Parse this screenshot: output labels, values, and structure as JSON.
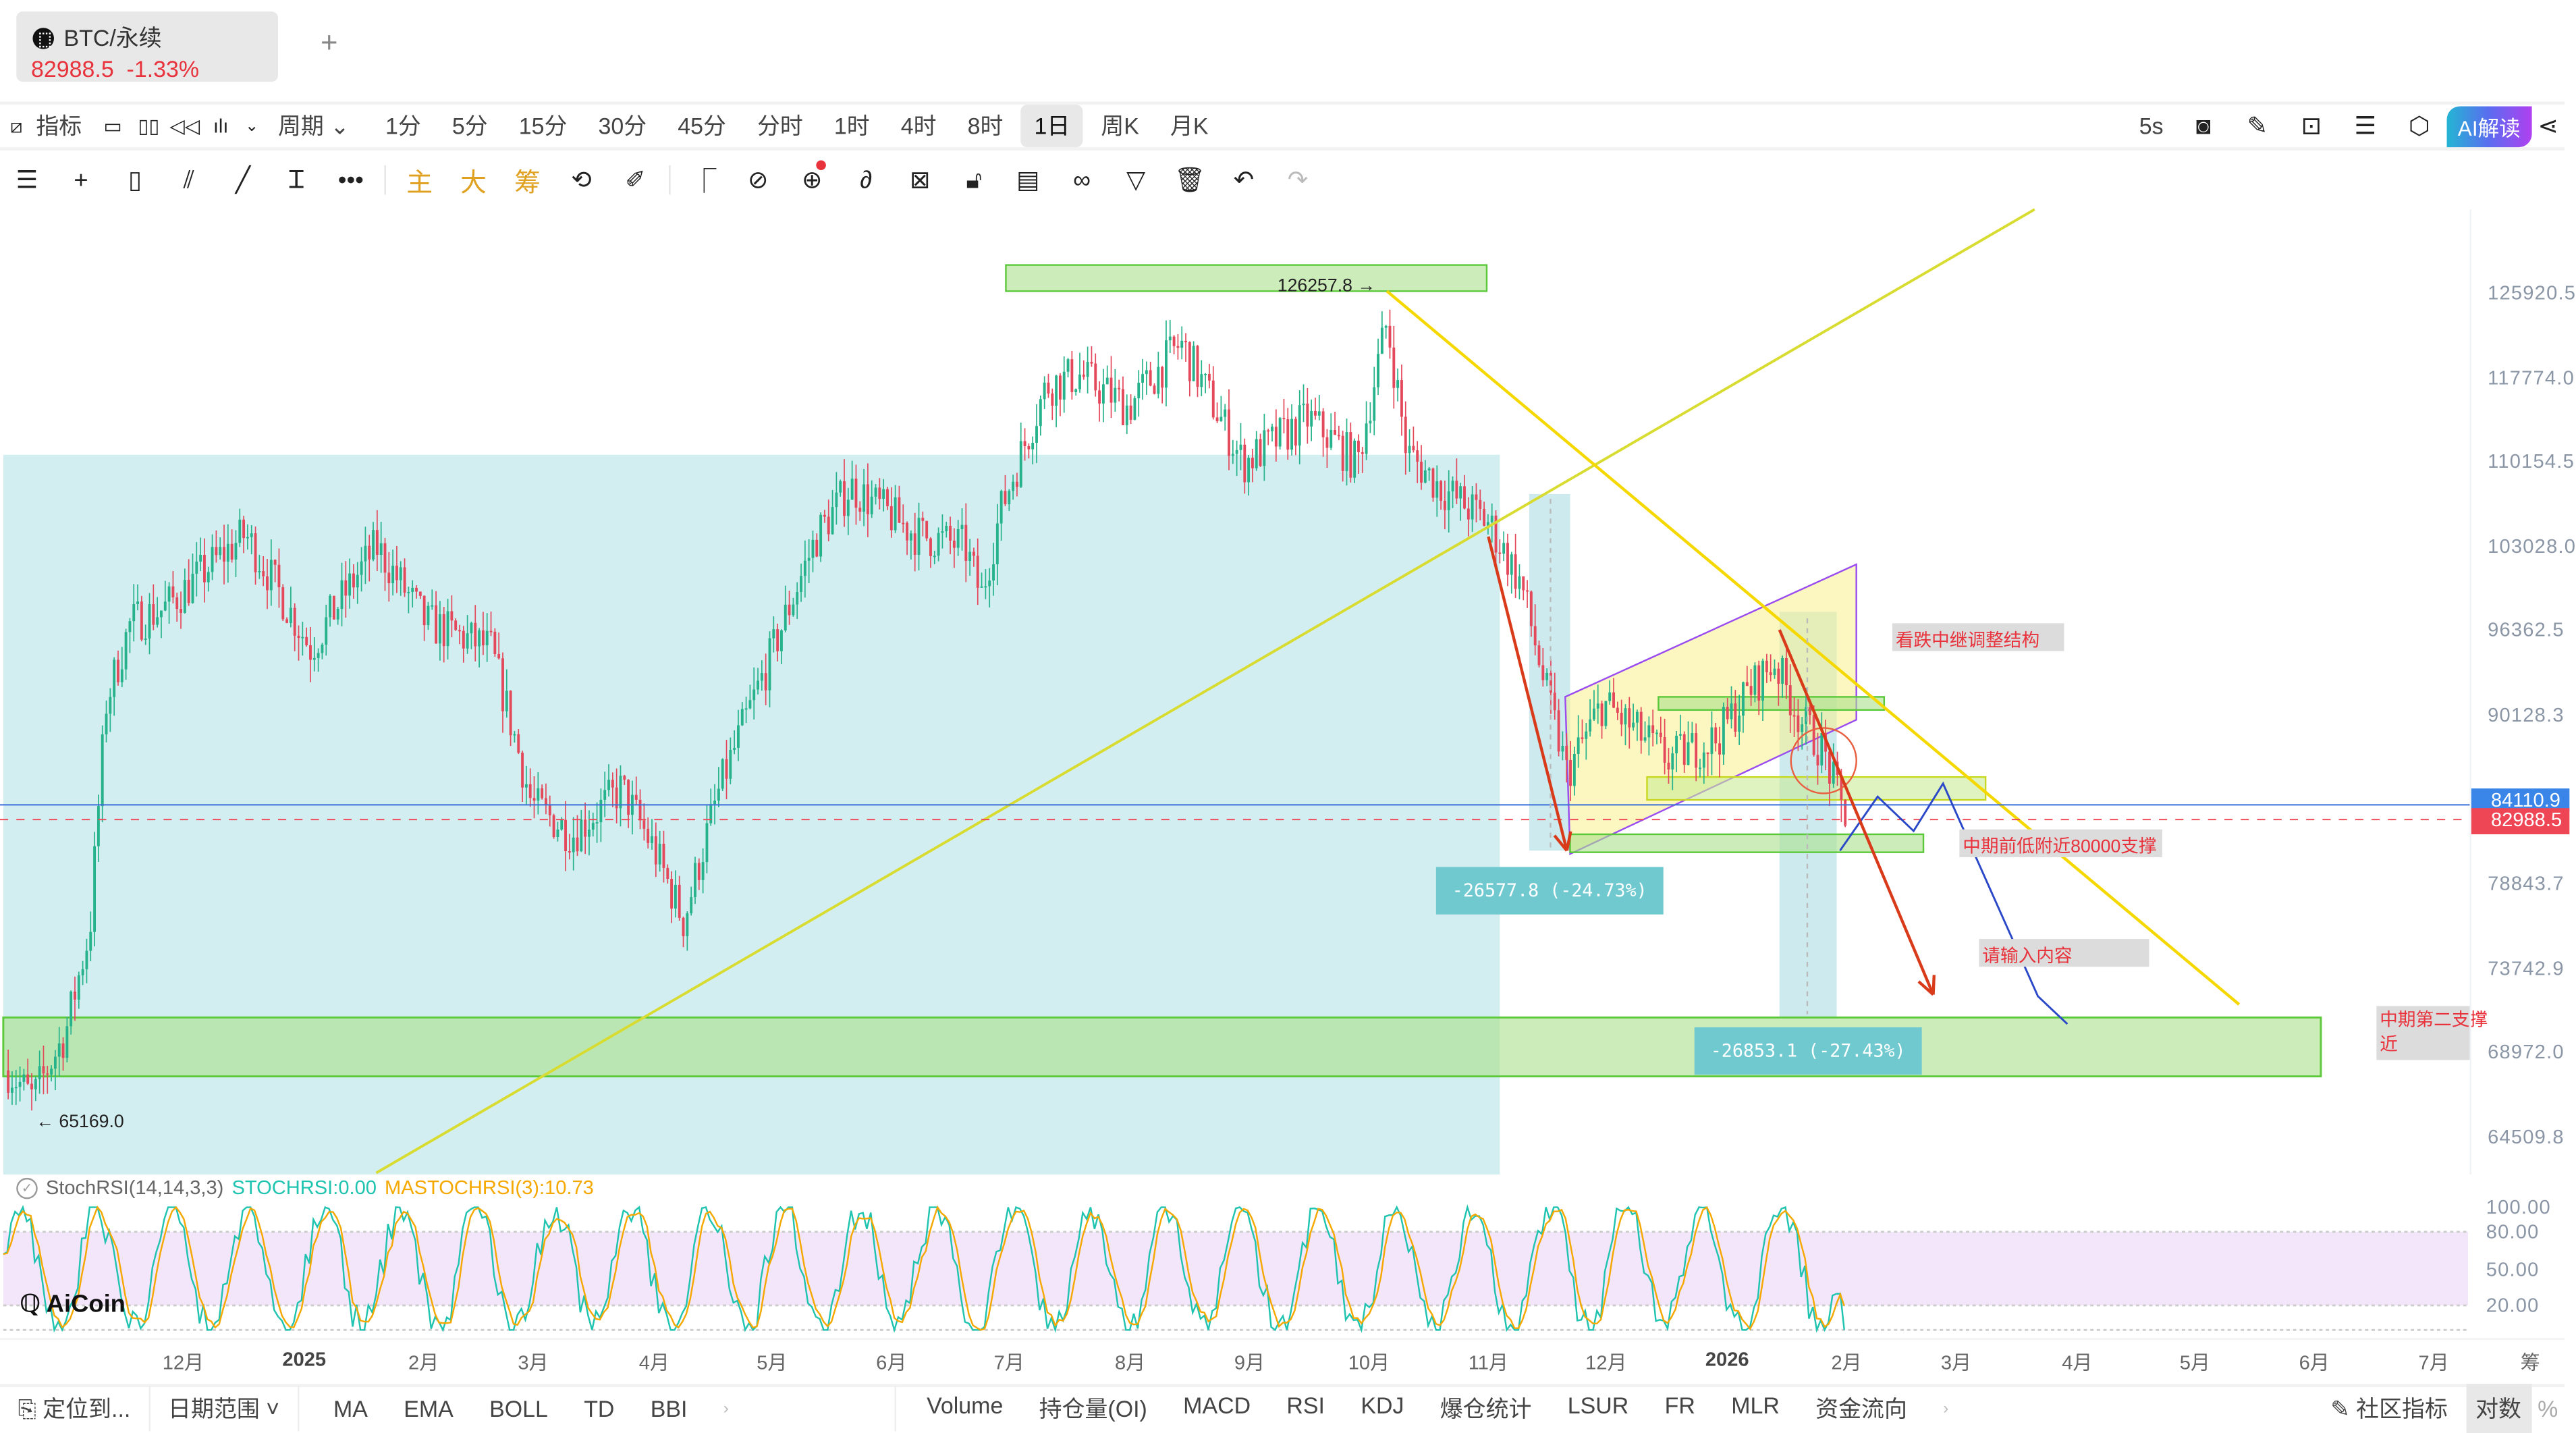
{
  "tab": {
    "symbol": "BTC/永续",
    "price": "82988.5",
    "change": "-1.33%",
    "add": "+"
  },
  "toolbar": {
    "indicator": "指标",
    "period": "周期",
    "intervals": [
      "1分",
      "5分",
      "15分",
      "30分",
      "45分",
      "分时",
      "1时",
      "4时",
      "8时",
      "1日",
      "周K",
      "月K"
    ],
    "selected_interval": "1日",
    "refresh": "5s",
    "ai_label": "AI解读"
  },
  "drawing_tools": {
    "main": "主",
    "big": "大",
    "chip": "筹"
  },
  "price_axis": {
    "ticks": [
      "125920.5",
      "117774.0",
      "110154.5",
      "103028.0",
      "96362.5",
      "90128.3",
      "78843.7",
      "73742.9",
      "68972.0",
      "64509.8"
    ],
    "scale": "log",
    "crosshair_price": "84110.9",
    "last_price": "82988.5",
    "crosshair_color": "#3a86e8",
    "last_color": "#ef4655"
  },
  "chart": {
    "high_label": "126257.8 →",
    "low_label": "← 65169.0",
    "measure1": "-26577.8 (-24.73%)",
    "measure2": "-26853.1 (-27.43%)",
    "notes": [
      "看跌中继调整结构",
      "中期前低附近80000支撑",
      "请输入内容",
      "中期第二支撑",
      "近"
    ],
    "up_color": "#26b28a",
    "down_color": "#e4485b"
  },
  "indicator": {
    "name": "StochRSI(14,14,3,3)",
    "stoch": "STOCHRSI:0.00",
    "ma": "MASTOCHRSI(3):10.73",
    "ticks": [
      "100.00",
      "80.00",
      "50.00",
      "20.00"
    ],
    "stoch_color": "#1fc4b0",
    "ma_color": "#f5a800"
  },
  "logo": "AiCoin",
  "time_axis": [
    "12月",
    "2025",
    "2月",
    "3月",
    "4月",
    "5月",
    "6月",
    "7月",
    "8月",
    "9月",
    "10月",
    "11月",
    "12月",
    "2026",
    "2月",
    "3月",
    "4月",
    "5月",
    "6月",
    "7月",
    "筹"
  ],
  "bottom": {
    "locate": "定位到...",
    "date_range": "日期范围",
    "main_ind": [
      "MA",
      "EMA",
      "BOLL",
      "TD",
      "BBI"
    ],
    "sub_ind": [
      "Volume",
      "持仓量(OI)",
      "MACD",
      "RSI",
      "KDJ",
      "爆仓统计",
      "LSUR",
      "FR",
      "MLR",
      "资金流向"
    ],
    "community": "社区指标",
    "log": "对数",
    "pct": "%"
  }
}
